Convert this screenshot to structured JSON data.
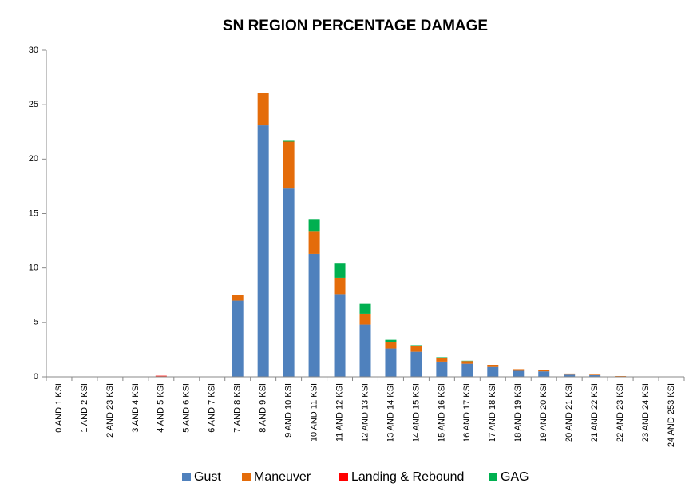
{
  "chart_data": {
    "type": "stacked_bar",
    "title": "SN REGION PERCENTAGE DAMAGE",
    "categories": [
      "0 AND 1 KSI",
      "1 AND 2 KSI",
      "2 AND 23 KSI",
      "3 AND 4 KSI",
      "4 AND 5 KSI",
      "5 AND 6 KSI",
      "6 AND 7 KSI",
      "7 AND 8 KSI",
      "8 AND 9 KSI",
      "9 AND 10 KSI",
      "10 AND 11 KSI",
      "11 AND 12 KSI",
      "12 AND 13 KSI",
      "13 AND 14 KSI",
      "14 AND 15 KSI",
      "15 AND 16 KSI",
      "16 AND 17 KSI",
      "17 AND 18 KSI",
      "18 AND 19 KSI",
      "19 AND 20 KSI",
      "20 AND 21 KSI",
      "21 AND 22 KSI",
      "22 AND 23 KSI",
      "23 AND 24 KSI",
      "24 AND 253 KSI"
    ],
    "series": [
      {
        "name": "Gust",
        "color": "#4f81bd",
        "values": [
          0,
          0,
          0,
          0,
          0,
          0,
          0,
          7.0,
          23.1,
          17.3,
          11.3,
          7.6,
          4.8,
          2.6,
          2.3,
          1.4,
          1.2,
          0.9,
          0.55,
          0.5,
          0.2,
          0.15,
          0.03,
          0,
          0
        ]
      },
      {
        "name": "Maneuver",
        "color": "#e46c0a",
        "values": [
          0,
          0,
          0,
          0,
          0.05,
          0,
          0,
          0.5,
          3.0,
          4.3,
          2.1,
          1.5,
          1.0,
          0.6,
          0.55,
          0.35,
          0.25,
          0.2,
          0.15,
          0.1,
          0.1,
          0.05,
          0.04,
          0,
          0
        ]
      },
      {
        "name": "Landing & Rebound",
        "color": "#ff0000",
        "values": [
          0,
          0,
          0,
          0,
          0.05,
          0,
          0,
          0,
          0,
          0,
          0,
          0,
          0,
          0,
          0,
          0,
          0,
          0,
          0,
          0,
          0,
          0,
          0,
          0,
          0
        ]
      },
      {
        "name": "GAG",
        "color": "#00b050",
        "values": [
          0,
          0,
          0,
          0,
          0,
          0,
          0,
          0,
          0,
          0.15,
          1.1,
          1.3,
          0.9,
          0.2,
          0.05,
          0.05,
          0.03,
          0,
          0,
          0,
          0,
          0,
          0,
          0,
          0
        ]
      }
    ],
    "ylim": [
      0,
      30
    ],
    "yticks": [
      0,
      5,
      10,
      15,
      20,
      25,
      30
    ],
    "legend": "bottom"
  }
}
